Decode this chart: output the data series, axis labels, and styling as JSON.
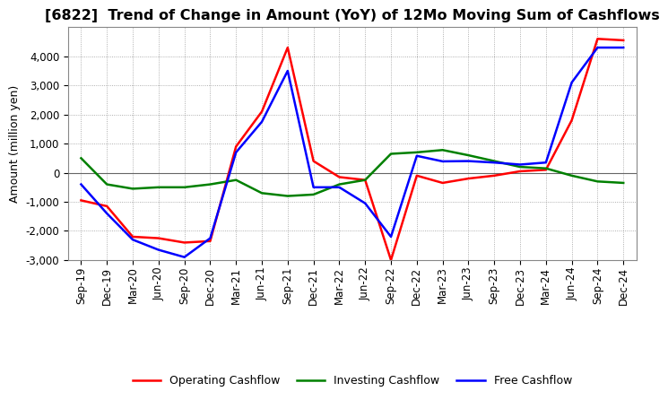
{
  "title": "[6822]  Trend of Change in Amount (YoY) of 12Mo Moving Sum of Cashflows",
  "ylabel": "Amount (million yen)",
  "x_labels": [
    "Sep-19",
    "Dec-19",
    "Mar-20",
    "Jun-20",
    "Sep-20",
    "Dec-20",
    "Mar-21",
    "Jun-21",
    "Sep-21",
    "Dec-21",
    "Mar-22",
    "Jun-22",
    "Sep-22",
    "Dec-22",
    "Mar-23",
    "Jun-23",
    "Sep-23",
    "Dec-23",
    "Mar-24",
    "Jun-24",
    "Sep-24",
    "Dec-24"
  ],
  "operating": [
    -950,
    -1150,
    -2200,
    -2250,
    -2400,
    -2350,
    900,
    2100,
    4300,
    400,
    -150,
    -250,
    -3000,
    -100,
    -350,
    -200,
    -100,
    50,
    100,
    1800,
    4600,
    4550
  ],
  "investing": [
    500,
    -400,
    -550,
    -500,
    -500,
    -400,
    -250,
    -700,
    -800,
    -750,
    -400,
    -250,
    650,
    700,
    780,
    600,
    400,
    200,
    150,
    -100,
    -300,
    -350
  ],
  "free": [
    -400,
    -1400,
    -2300,
    -2650,
    -2900,
    -2250,
    700,
    1750,
    3500,
    -500,
    -500,
    -1050,
    -2200,
    580,
    390,
    400,
    350,
    280,
    350,
    3100,
    4300,
    4300
  ],
  "operating_color": "#ff0000",
  "investing_color": "#008000",
  "free_color": "#0000ff",
  "background_color": "#ffffff",
  "grid_color": "#999999",
  "ylim": [
    -3000,
    5000
  ],
  "yticks": [
    -3000,
    -2000,
    -1000,
    0,
    1000,
    2000,
    3000,
    4000
  ],
  "legend_labels": [
    "Operating Cashflow",
    "Investing Cashflow",
    "Free Cashflow"
  ],
  "title_fontsize": 11.5,
  "ylabel_fontsize": 9,
  "tick_fontsize": 8.5,
  "legend_fontsize": 9,
  "linewidth": 1.8
}
